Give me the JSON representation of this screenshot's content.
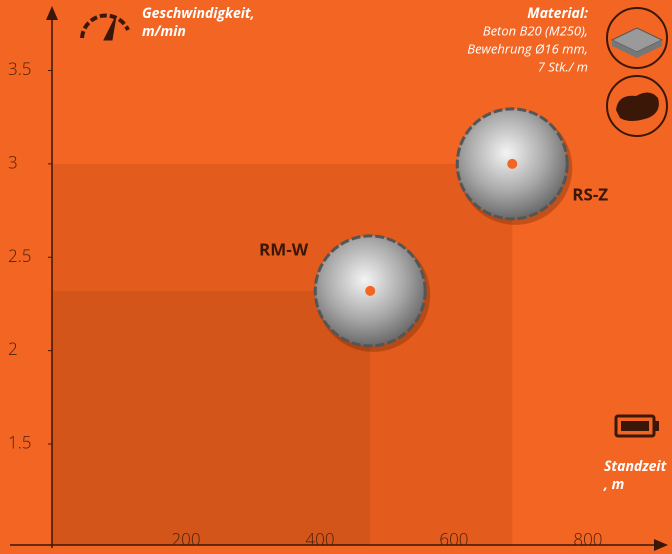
{
  "chart_data": {
    "type": "scatter",
    "y_label": [
      "Geschwindigkeit,",
      "m/min"
    ],
    "x_label": [
      "Standzeit",
      ", m"
    ],
    "note_title": "Material:",
    "note_lines": [
      "Beton B20 (M250),",
      "Bewehrung Ø16 mm,",
      "7 Stk./ m"
    ],
    "points": [
      {
        "name": "RS-Z",
        "x": 687,
        "y": 3.0,
        "color": "#e35c1d"
      },
      {
        "name": "RM-W",
        "x": 475,
        "y": 2.32,
        "color": "#d4551a"
      }
    ],
    "xlim": [
      0,
      915
    ],
    "ylim": [
      0.97,
      3.84
    ],
    "xticks": [
      200,
      400,
      600,
      800
    ],
    "yticks": [
      1.5,
      2,
      2.5,
      3,
      3.5
    ]
  }
}
